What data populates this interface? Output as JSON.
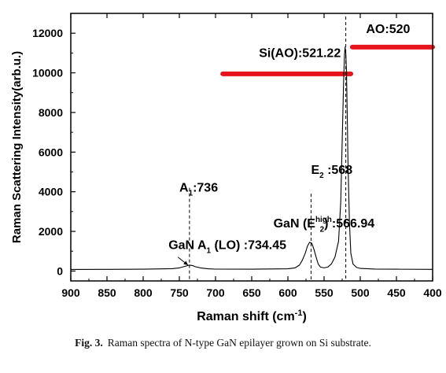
{
  "chart_data": {
    "type": "line",
    "xlabel": "Raman shift (cm",
    "xlabel_sup": "-1",
    "xlabel_end": ")",
    "ylabel": "Raman Scattering Intensity(arb.u.)",
    "xlim": [
      900,
      400
    ],
    "ylim": [
      -500,
      13000
    ],
    "x_ticks": [
      900,
      850,
      800,
      750,
      700,
      650,
      600,
      550,
      500,
      450,
      400
    ],
    "y_ticks": [
      0,
      2000,
      4000,
      6000,
      8000,
      10000,
      12000
    ],
    "grid": false,
    "series": [
      {
        "x": [
          900,
          850,
          800,
          760,
          750,
          745,
          740,
          736,
          732,
          728,
          720,
          710,
          700,
          650,
          600,
          590,
          584,
          580,
          576,
          573,
          570,
          567,
          564,
          561,
          558,
          555,
          550,
          545,
          540,
          535,
          530,
          527,
          525,
          523,
          522,
          521,
          520,
          519,
          518,
          517,
          515,
          513,
          510,
          505,
          500,
          480,
          450,
          400
        ],
        "values": [
          80,
          85,
          90,
          120,
          160,
          210,
          260,
          300,
          280,
          220,
          150,
          110,
          95,
          90,
          110,
          160,
          300,
          550,
          900,
          1250,
          1450,
          1400,
          1100,
          700,
          350,
          200,
          160,
          200,
          350,
          700,
          1500,
          3500,
          6500,
          9500,
          10800,
          11300,
          11000,
          10000,
          8000,
          5500,
          2500,
          900,
          350,
          180,
          130,
          100,
          90,
          85
        ]
      }
    ],
    "vlines": [
      736,
      568,
      520
    ],
    "annotations": [
      {
        "label": "Si(AO):521.22",
        "x": 640,
        "y": 10800
      },
      {
        "label": "AO:520",
        "x": 492,
        "y": 12000
      },
      {
        "label": "E",
        "label_sub": "2",
        "label_end": " :568",
        "x": 568,
        "y": 4900
      },
      {
        "label": "GaN (E",
        "label_sub": "2",
        "label_sup": "high",
        "label_end": ") :566.94",
        "x": 620,
        "y": 2200
      },
      {
        "label": "A",
        "label_sub": "1",
        "label_end": ":736",
        "x": 750,
        "y": 4000
      },
      {
        "label": "GaN A",
        "label_sub": "1",
        "label_end": " (LO) :734.45",
        "x": 765,
        "y": 1100
      }
    ],
    "arrow": {
      "from_x": 752,
      "from_y": 700,
      "to_x": 738,
      "to_y": 300
    },
    "highlights": [
      {
        "x1": 690,
        "x2": 513,
        "y": 9950,
        "color": "#e8141b"
      },
      {
        "x1": 511,
        "x2": 400,
        "y": 11300,
        "color": "#e8141b"
      }
    ]
  },
  "caption": {
    "label": "Fig. 3.",
    "text": "Raman spectra of N-type GaN epilayer grown on Si substrate."
  }
}
